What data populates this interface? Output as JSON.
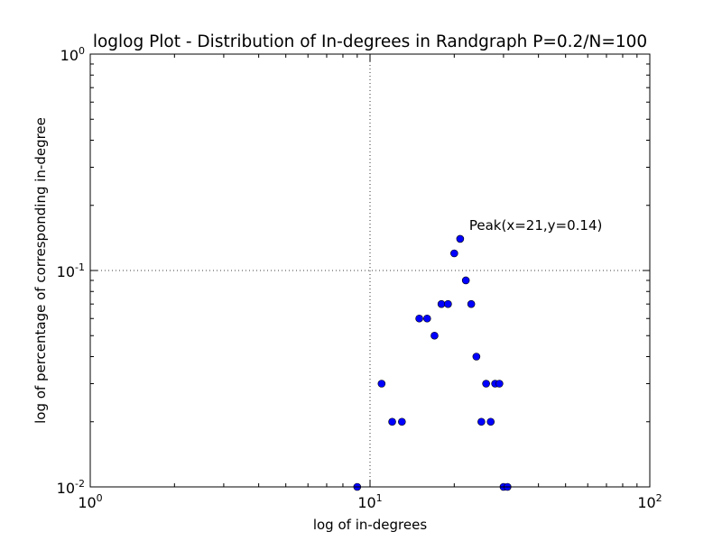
{
  "chart_data": {
    "type": "scatter",
    "title": "loglog Plot - Distribution of In-degrees in Randgraph P=0.2/N=100",
    "xlabel": "log of in-degrees",
    "ylabel": "log of percentage of corresponding in-degree",
    "xscale": "log",
    "yscale": "log",
    "xlim": [
      1,
      100
    ],
    "ylim": [
      0.01,
      1
    ],
    "x_ticks": [
      {
        "base": "10",
        "exp": "0"
      },
      {
        "base": "10",
        "exp": "1"
      },
      {
        "base": "10",
        "exp": "2"
      }
    ],
    "y_ticks": [
      {
        "base": "10",
        "exp": "-2"
      },
      {
        "base": "10",
        "exp": "-1"
      },
      {
        "base": "10",
        "exp": "0"
      }
    ],
    "grid": "dotted, major ticks",
    "marker_color": "#0000ff",
    "points": [
      {
        "x": 9,
        "y": 0.01
      },
      {
        "x": 11,
        "y": 0.03
      },
      {
        "x": 12,
        "y": 0.02
      },
      {
        "x": 13,
        "y": 0.02
      },
      {
        "x": 15,
        "y": 0.06
      },
      {
        "x": 16,
        "y": 0.06
      },
      {
        "x": 17,
        "y": 0.05
      },
      {
        "x": 18,
        "y": 0.07
      },
      {
        "x": 19,
        "y": 0.07
      },
      {
        "x": 20,
        "y": 0.12
      },
      {
        "x": 21,
        "y": 0.14
      },
      {
        "x": 22,
        "y": 0.09
      },
      {
        "x": 23,
        "y": 0.07
      },
      {
        "x": 24,
        "y": 0.04
      },
      {
        "x": 25,
        "y": 0.02
      },
      {
        "x": 26,
        "y": 0.03
      },
      {
        "x": 27,
        "y": 0.02
      },
      {
        "x": 28,
        "y": 0.03
      },
      {
        "x": 29,
        "y": 0.03
      },
      {
        "x": 30,
        "y": 0.01
      },
      {
        "x": 31,
        "y": 0.01
      }
    ],
    "annotation": {
      "text": "Peak(x=21,y=0.14)",
      "x": 21,
      "y": 0.14
    }
  }
}
